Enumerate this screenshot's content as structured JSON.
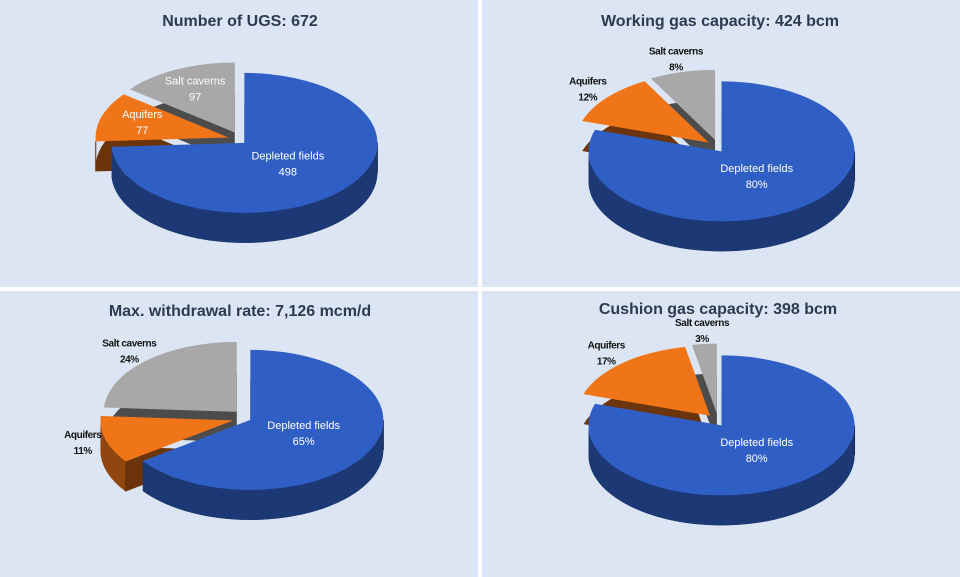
{
  "chart_data": [
    {
      "type": "pie",
      "title": "Number of UGS: 672",
      "categories": [
        "Depleted fields",
        "Aquifers",
        "Salt caverns"
      ],
      "values": [
        498,
        77,
        97
      ],
      "colors": [
        "#2f5fc4",
        "#f07418",
        "#a8a8a8"
      ]
    },
    {
      "type": "pie",
      "title": "Working gas capacity: 424 bcm",
      "categories": [
        "Depleted fields",
        "Aquifers",
        "Salt caverns"
      ],
      "values": [
        80,
        12,
        8
      ],
      "value_labels": [
        "80%",
        "12%",
        "8%"
      ],
      "colors": [
        "#2f5fc4",
        "#f07418",
        "#a8a8a8"
      ]
    },
    {
      "type": "pie",
      "title": "Max. withdrawal rate: 7,126 mcm/d",
      "categories": [
        "Depleted fields",
        "Aquifers",
        "Salt caverns"
      ],
      "values": [
        65,
        11,
        24
      ],
      "value_labels": [
        "65%",
        "11%",
        "24%"
      ],
      "colors": [
        "#2f5fc4",
        "#f07418",
        "#a8a8a8"
      ]
    },
    {
      "type": "pie",
      "title": "Cushion gas capacity: 398 bcm",
      "categories": [
        "Depleted fields",
        "Aquifers",
        "Salt caverns"
      ],
      "values": [
        80,
        17,
        3
      ],
      "value_labels": [
        "80%",
        "17%",
        "3%"
      ],
      "colors": [
        "#2f5fc4",
        "#f07418",
        "#a8a8a8"
      ]
    }
  ]
}
